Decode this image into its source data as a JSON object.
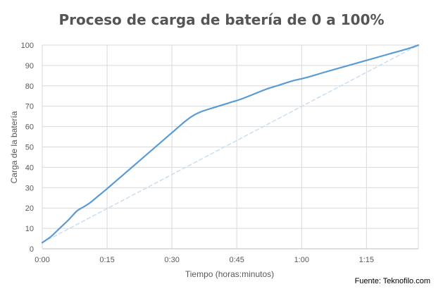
{
  "chart_data": {
    "type": "line",
    "title": "Proceso de carga de batería de 0 a 100%",
    "xlabel": "Tiempo (horas:minutos)",
    "ylabel": "Carga de la batería",
    "source": "Fuente: Teknofilo.com",
    "x_ticks": [
      "0:00",
      "0:15",
      "0:30",
      "0:45",
      "1:00",
      "1:15"
    ],
    "x_tick_minutes": [
      0,
      15,
      30,
      45,
      60,
      75
    ],
    "xlim_minutes": [
      0,
      87
    ],
    "ylim": [
      0,
      100
    ],
    "y_ticks": [
      0,
      10,
      20,
      30,
      40,
      50,
      60,
      70,
      80,
      90,
      100
    ],
    "grid": true,
    "legend": "none",
    "series": [
      {
        "color": "#5b9bd5",
        "style": "solid",
        "x_minutes": [
          0,
          2,
          4,
          6,
          8,
          9.5,
          11,
          13,
          15,
          18,
          21,
          24,
          27,
          30,
          33,
          35,
          37,
          40,
          43,
          46,
          49,
          52,
          55,
          58,
          61,
          65,
          70,
          75,
          80,
          85,
          87
        ],
        "values": [
          3,
          6,
          10,
          14,
          18.5,
          20.5,
          22.5,
          26,
          29.5,
          35,
          40.5,
          46,
          51.5,
          57,
          62.5,
          65.5,
          67.5,
          69.5,
          71.5,
          73.5,
          76,
          78.5,
          80.5,
          82.5,
          84,
          86.5,
          89.5,
          92.5,
          95.5,
          98.5,
          100
        ]
      },
      {
        "color": "#c9def0",
        "style": "dashed",
        "x_minutes": [
          0,
          87
        ],
        "values": [
          3,
          100
        ]
      }
    ]
  }
}
